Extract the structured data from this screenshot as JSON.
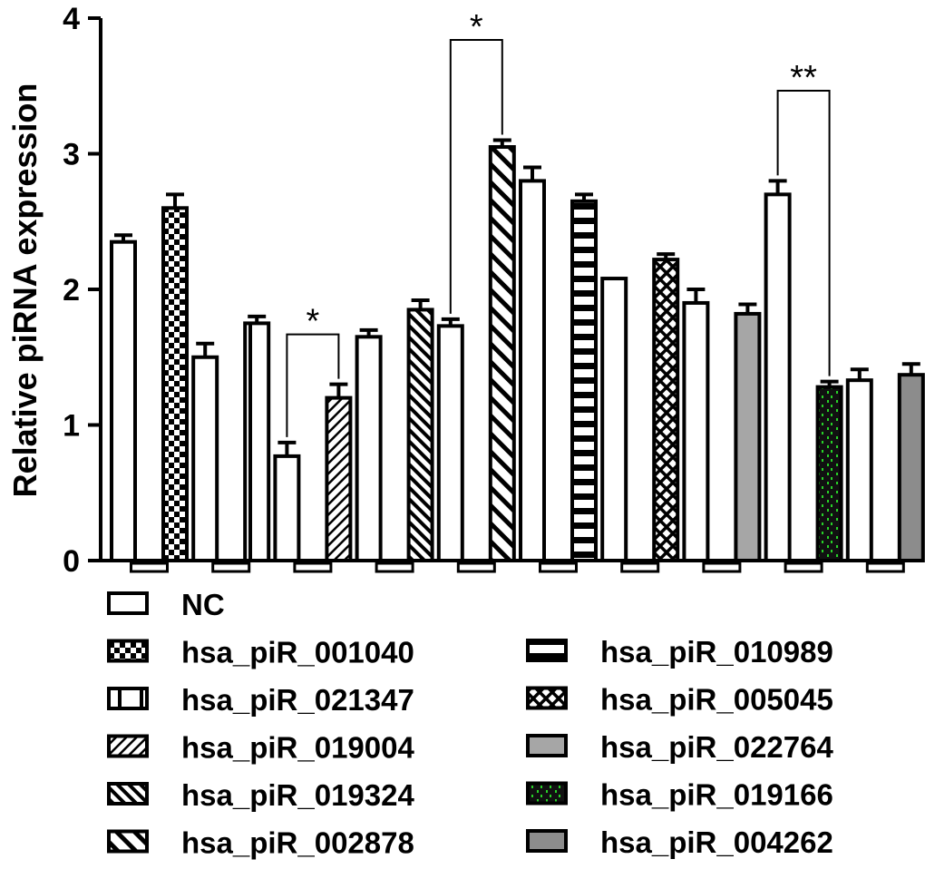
{
  "chart_data": {
    "type": "bar",
    "title": "",
    "xlabel": "",
    "ylabel": "Relative piRNA expression",
    "ylim": [
      0,
      4
    ],
    "yticks": [
      "0",
      "1",
      "2",
      "3",
      "4"
    ],
    "grid": false,
    "legend_position": "bottom",
    "groups": [
      {
        "label": "",
        "bars": [
          {
            "series": "NC",
            "value": 2.35,
            "error": 0.05
          },
          {
            "series": "hsa_piR_001040",
            "value": 2.6,
            "error": 0.1
          }
        ]
      },
      {
        "label": "",
        "bars": [
          {
            "series": "NC",
            "value": 1.5,
            "error": 0.1
          },
          {
            "series": "hsa_piR_021347",
            "value": 1.75,
            "error": 0.05
          }
        ]
      },
      {
        "label": "",
        "bars": [
          {
            "series": "NC",
            "value": 0.77,
            "error": 0.1
          },
          {
            "series": "hsa_piR_019004",
            "value": 1.2,
            "error": 0.1
          }
        ],
        "significance": "*"
      },
      {
        "label": "",
        "bars": [
          {
            "series": "NC",
            "value": 1.65,
            "error": 0.05
          },
          {
            "series": "hsa_piR_019324",
            "value": 1.85,
            "error": 0.07
          }
        ]
      },
      {
        "label": "",
        "bars": [
          {
            "series": "NC",
            "value": 1.73,
            "error": 0.05
          },
          {
            "series": "hsa_piR_002878",
            "value": 3.05,
            "error": 0.05
          }
        ],
        "significance": "*"
      },
      {
        "label": "",
        "bars": [
          {
            "series": "NC",
            "value": 2.8,
            "error": 0.1
          },
          {
            "series": "hsa_piR_010989",
            "value": 2.65,
            "error": 0.05
          }
        ]
      },
      {
        "label": "",
        "bars": [
          {
            "series": "NC",
            "value": 2.08,
            "error": 0.0
          },
          {
            "series": "hsa_piR_005045",
            "value": 2.22,
            "error": 0.04
          }
        ]
      },
      {
        "label": "",
        "bars": [
          {
            "series": "NC",
            "value": 1.9,
            "error": 0.1
          },
          {
            "series": "hsa_piR_022764",
            "value": 1.82,
            "error": 0.07
          }
        ]
      },
      {
        "label": "",
        "bars": [
          {
            "series": "NC",
            "value": 2.7,
            "error": 0.1
          },
          {
            "series": "hsa_piR_019166",
            "value": 1.28,
            "error": 0.04
          }
        ],
        "significance": "**"
      },
      {
        "label": "",
        "bars": [
          {
            "series": "NC",
            "value": 1.33,
            "error": 0.08
          },
          {
            "series": "hsa_piR_004262",
            "value": 1.37,
            "error": 0.08
          }
        ]
      }
    ],
    "legend": [
      {
        "label": "NC",
        "pattern": "none",
        "color": "#ffffff"
      },
      {
        "label": "hsa_piR_001040",
        "pattern": "checker",
        "color": "#ffffff"
      },
      {
        "label": "hsa_piR_021347",
        "pattern": "vertical-split",
        "color": "#ffffff"
      },
      {
        "label": "hsa_piR_019004",
        "pattern": "diagonal-fine",
        "color": "#ffffff"
      },
      {
        "label": "hsa_piR_019324",
        "pattern": "diagonal-dense",
        "color": "#ffffff"
      },
      {
        "label": "hsa_piR_002878",
        "pattern": "diagonal-wide",
        "color": "#ffffff"
      },
      {
        "label": "hsa_piR_010989",
        "pattern": "horizontal",
        "color": "#ffffff"
      },
      {
        "label": "hsa_piR_005045",
        "pattern": "crosshatch",
        "color": "#ffffff"
      },
      {
        "label": "hsa_piR_022764",
        "pattern": "solid",
        "color": "#a6a6a6"
      },
      {
        "label": "hsa_piR_019166",
        "pattern": "green-dots",
        "color": "#111111"
      },
      {
        "label": "hsa_piR_004262",
        "pattern": "solid",
        "color": "#8c8c8c"
      }
    ]
  }
}
